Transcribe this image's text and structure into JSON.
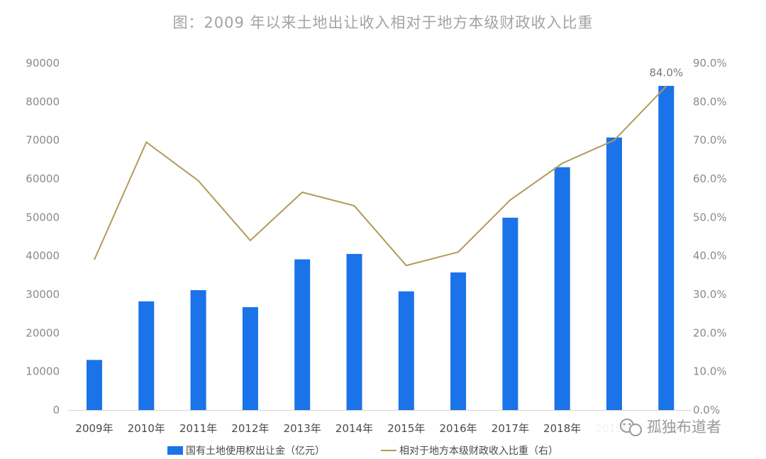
{
  "chart_data": {
    "type": "bar",
    "title": "图：2009 年以来土地出让收入相对于地方本级财政收入比重",
    "categories": [
      "2009年",
      "2010年",
      "2011年",
      "2012年",
      "2013年",
      "2014年",
      "2015年",
      "2016年",
      "2017年",
      "2018年",
      "2019年",
      "2020年"
    ],
    "y_left": {
      "ticks": [
        "0",
        "10000",
        "20000",
        "30000",
        "40000",
        "50000",
        "60000",
        "70000",
        "80000",
        "90000"
      ],
      "range": [
        0,
        90000
      ]
    },
    "y_right": {
      "ticks": [
        "0.0%",
        "10.0%",
        "20.0%",
        "30.0%",
        "40.0%",
        "50.0%",
        "60.0%",
        "70.0%",
        "80.0%",
        "90.0%"
      ],
      "range": [
        0,
        90
      ]
    },
    "series": [
      {
        "name": "国有土地使用权出让金（亿元）",
        "type": "bar",
        "axis": "left",
        "color": "#1a73e8",
        "values": [
          13000,
          28200,
          31100,
          26700,
          39100,
          40500,
          30800,
          35700,
          49900,
          63000,
          70700,
          84100
        ]
      },
      {
        "name": "相对于地方本级财政收入比重（右）",
        "type": "line",
        "axis": "right",
        "color": "#b39a5a",
        "values": [
          39.0,
          69.5,
          59.5,
          44.0,
          56.5,
          53.0,
          37.5,
          41.0,
          54.5,
          64.0,
          70.0,
          84.0
        ]
      }
    ],
    "annotations": [
      {
        "text": "84.0%",
        "category": "2020年"
      }
    ],
    "grid": false,
    "legend_position": "bottom"
  },
  "watermark": {
    "text": "孤独布道者"
  }
}
